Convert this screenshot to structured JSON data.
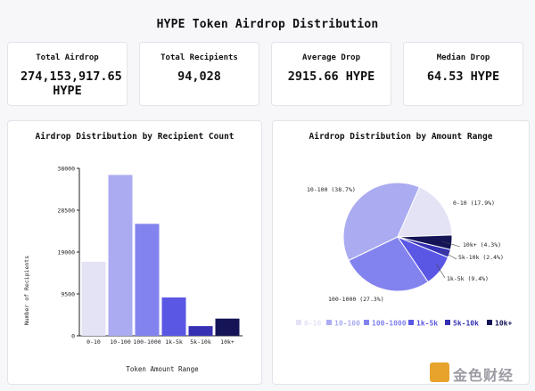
{
  "header": {
    "title": "HYPE Token Airdrop Distribution"
  },
  "stats": [
    {
      "label": "Total Airdrop",
      "value": "274,153,917.65 HYPE"
    },
    {
      "label": "Total Recipients",
      "value": "94,028"
    },
    {
      "label": "Average Drop",
      "value": "2915.66 HYPE"
    },
    {
      "label": "Median Drop",
      "value": "64.53 HYPE"
    }
  ],
  "colors": {
    "r0_10": "#e4e2f5",
    "r10_100": "#ababf2",
    "r100_1000": "#8383ef",
    "r1k_5k": "#5a57e5",
    "r5k_10k": "#3631b3",
    "r10k": "#141457"
  },
  "chart_data": [
    {
      "type": "bar",
      "title": "Airdrop Distribution by Recipient Count",
      "xlabel": "Token Amount Range",
      "ylabel": "Number of Recipients",
      "categories": [
        "0-10",
        "10-100",
        "100-1000",
        "1k-5k",
        "5k-10k",
        "10k+"
      ],
      "values": [
        16800,
        36500,
        25400,
        8700,
        2200,
        3900
      ],
      "yticks": [
        0,
        9500,
        19000,
        28500,
        38000
      ],
      "ylim": [
        0,
        38000
      ],
      "grid": false
    },
    {
      "type": "pie",
      "title": "Airdrop Distribution by Amount Range",
      "slice_labels": [
        "0-10 (17.9%)",
        "10-100 (38.7%)",
        "100-1000 (27.3%)",
        "1k-5k (9.4%)",
        "5k-10k (2.4%)",
        "10k+ (4.3%)"
      ],
      "legend": [
        "0-10",
        "10-100",
        "100-1000",
        "1k-5k",
        "5k-10k",
        "10k+"
      ],
      "values": [
        17.9,
        38.7,
        27.3,
        9.4,
        2.4,
        4.3
      ],
      "legend_position": "bottom"
    }
  ],
  "watermark": {
    "text": "金色财经"
  }
}
